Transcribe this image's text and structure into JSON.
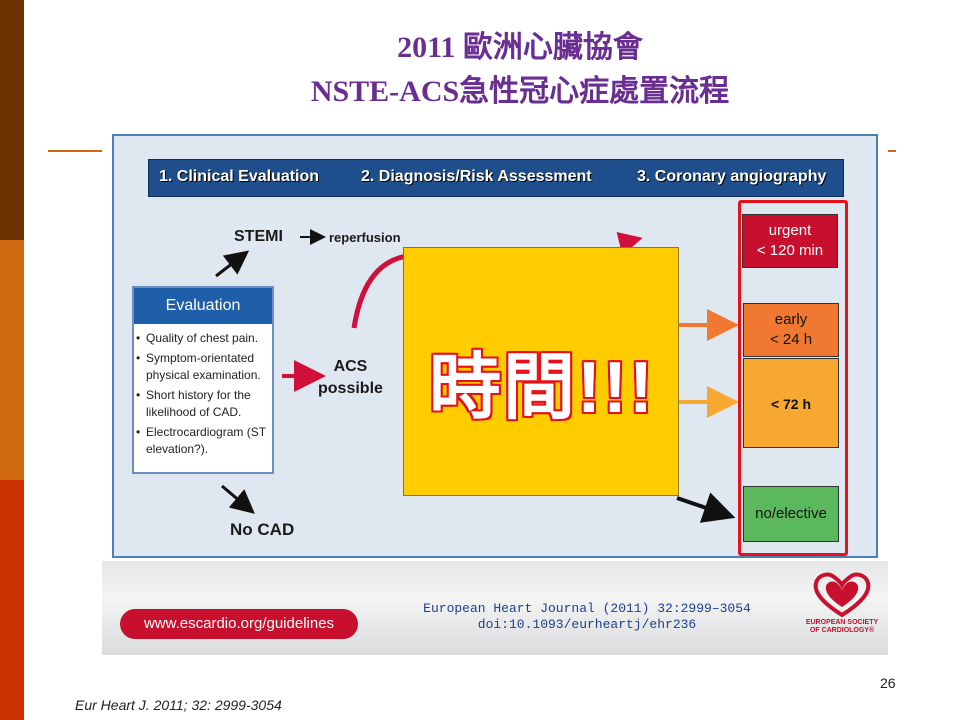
{
  "slide": {
    "title_line1": "2011 歐洲心臟協會",
    "title_line2": "NSTE-ACS急性冠心症處置流程",
    "page_number": "26",
    "citation": "Eur Heart J. 2011; 32: 2999-3054",
    "colors": {
      "title": "#6a2d91",
      "accent_line": "#d06a10",
      "overlay": "#ffcc00",
      "highlight_frame": "#e8101a"
    }
  },
  "figure": {
    "steps": [
      "1. Clinical Evaluation",
      "2. Diagnosis/Risk Assessment",
      "3. Coronary angiography"
    ],
    "evaluation": {
      "header": "Evaluation",
      "items": [
        "Quality of chest pain.",
        "Symptom-orientated physical examination.",
        "Short history for the likelihood of CAD.",
        "Electrocardiogram (ST elevation?)."
      ]
    },
    "stemi": "STEMI",
    "reperfusion": "reperfusion",
    "acs_line1": "ACS",
    "acs_line2": "possible",
    "no_cad": "No CAD",
    "urgency": {
      "urgent_line1": "urgent",
      "urgent_line2": "< 120 min",
      "early_line1": "early",
      "early_line2": "< 24 h",
      "within_72": "< 72 h",
      "elective": "no/elective"
    },
    "footer": {
      "url": "www.escardio.org/guidelines",
      "journal_line1": "European Heart Journal (2011) 32:2999–3054",
      "journal_line2": "doi:10.1093/eurheartj/ehr236",
      "logo_text": "EUROPEAN SOCIETY OF CARDIOLOGY®"
    }
  },
  "overlay": {
    "text": "時間!!!"
  }
}
